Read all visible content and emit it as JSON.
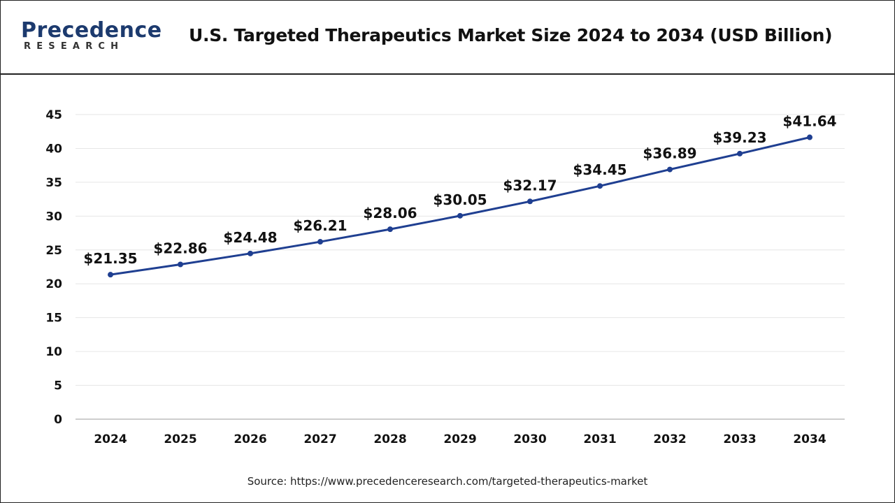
{
  "brand": {
    "name": "Precedence",
    "sub": "RESEARCH",
    "colors": {
      "primary": "#1c3a6e",
      "line": "#1f3f91"
    }
  },
  "title": "U.S. Targeted Therapeutics Market Size 2024 to 2034 (USD Billion)",
  "source": "Source: https://www.precedenceresearch.com/targeted-therapeutics-market",
  "chart_data": {
    "type": "line",
    "title": "U.S. Targeted Therapeutics Market Size 2024 to 2034 (USD Billion)",
    "xlabel": "",
    "ylabel": "",
    "categories": [
      "2024",
      "2025",
      "2026",
      "2027",
      "2028",
      "2029",
      "2030",
      "2031",
      "2032",
      "2033",
      "2034"
    ],
    "values": [
      21.35,
      22.86,
      24.48,
      26.21,
      28.06,
      30.05,
      32.17,
      34.45,
      36.89,
      39.23,
      41.64
    ],
    "data_labels": [
      "$21.35",
      "$22.86",
      "$24.48",
      "$26.21",
      "$28.06",
      "$30.05",
      "$32.17",
      "$34.45",
      "$36.89",
      "$39.23",
      "$41.64"
    ],
    "ylim": [
      0,
      45
    ],
    "yticks": [
      0,
      5,
      10,
      15,
      20,
      25,
      30,
      35,
      40,
      45
    ],
    "grid": true,
    "legend": "none"
  }
}
